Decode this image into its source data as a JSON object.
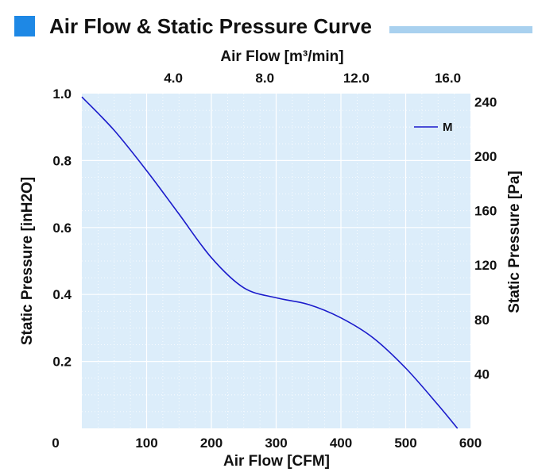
{
  "chart_data": {
    "type": "line",
    "title": "Air Flow & Static Pressure Curve",
    "xlabel": "Air Flow  [CFM]",
    "x2label": "Air Flow  [m³/min]",
    "ylabel": "Static Pressure  [inH2O]",
    "y2label": "Static Pressure  [Pa]",
    "xlim": [
      0,
      600
    ],
    "ylim": [
      0,
      1.0
    ],
    "x2_ticks": [
      4.0,
      8.0,
      12.0,
      16.0
    ],
    "x2_tick_labels": [
      "4.0",
      "8.0",
      "12.0",
      "16.0"
    ],
    "x_ticks": [
      0,
      100,
      200,
      300,
      400,
      500,
      600
    ],
    "x_tick_labels": [
      "0",
      "100",
      "200",
      "300",
      "400",
      "500",
      "600"
    ],
    "y_ticks": [
      0.2,
      0.4,
      0.6,
      0.8,
      1.0
    ],
    "y_tick_labels": [
      "0.2",
      "0.4",
      "0.6",
      "0.8",
      "1.0"
    ],
    "y2_ticks": [
      40,
      80,
      120,
      160,
      200,
      240
    ],
    "y2_tick_labels": [
      "40",
      "80",
      "120",
      "160",
      "200",
      "240"
    ],
    "grid": true,
    "legend_position": "top-right",
    "colors": {
      "accent_square": "#1e88e5",
      "title_bar": "#a9d1ef",
      "plot_background": "#dcedfa",
      "grid": "#ffffff",
      "series": "#1a1acb"
    },
    "series": [
      {
        "name": "M",
        "x": [
          0,
          50,
          100,
          150,
          200,
          250,
          300,
          350,
          400,
          450,
          500,
          550,
          580
        ],
        "y": [
          0.99,
          0.89,
          0.77,
          0.64,
          0.51,
          0.42,
          0.39,
          0.37,
          0.33,
          0.27,
          0.18,
          0.07,
          0.0
        ]
      }
    ]
  }
}
